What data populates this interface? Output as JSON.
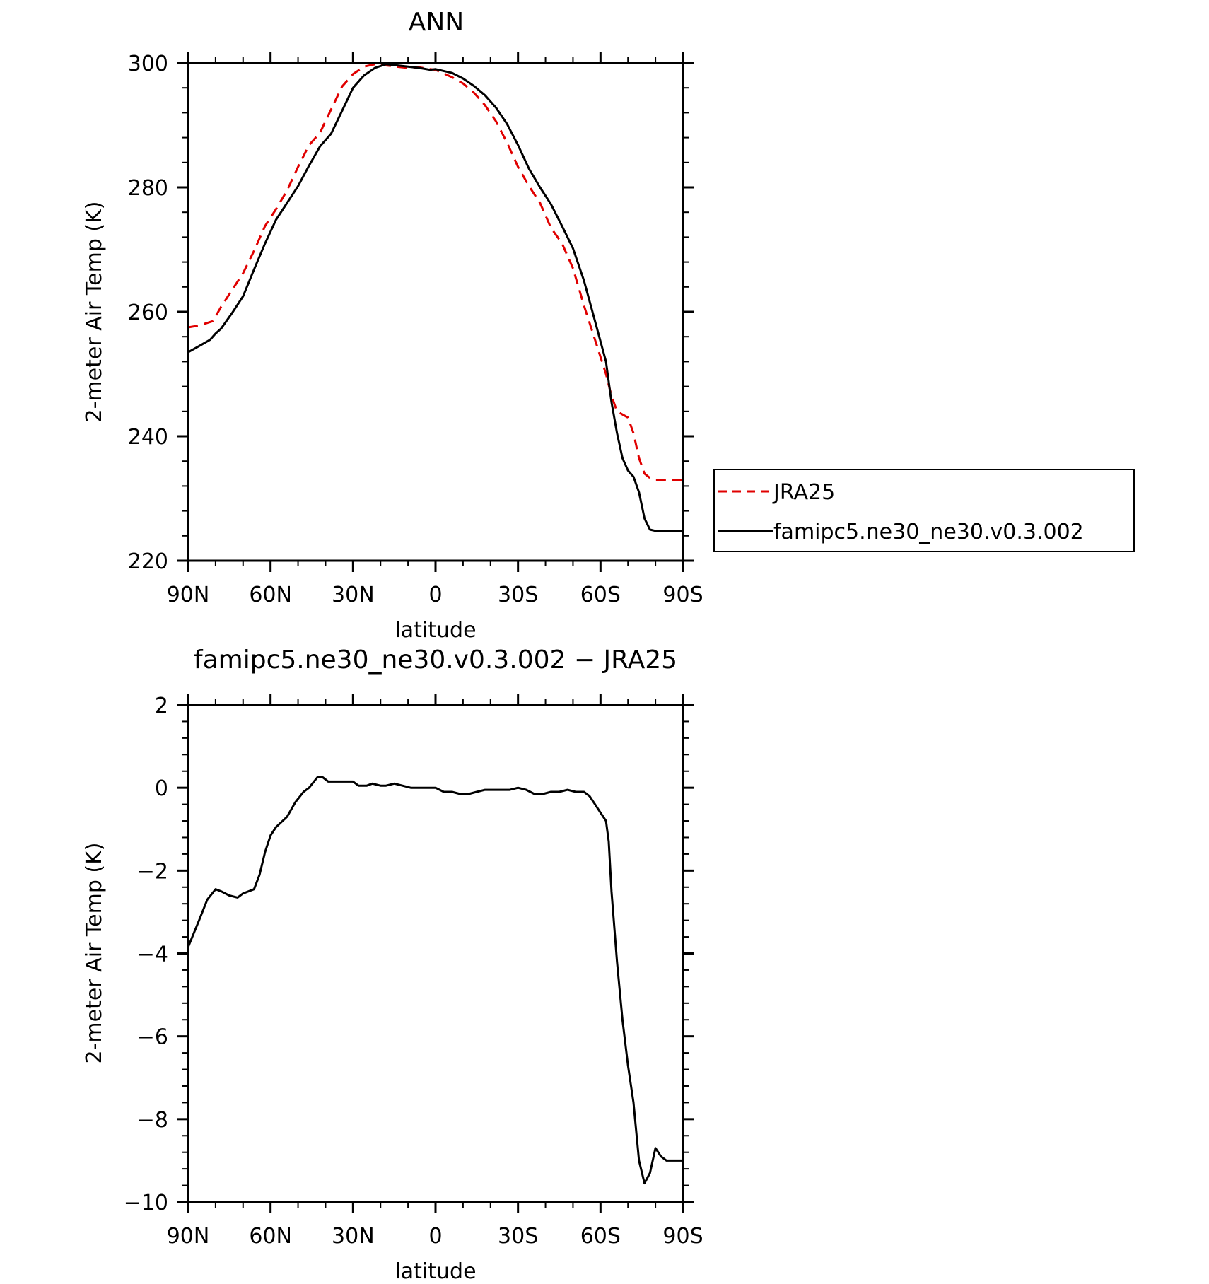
{
  "chart_data": [
    {
      "type": "line",
      "title": "ANN",
      "xlabel": "latitude",
      "ylabel": "2-meter Air Temp (K)",
      "xlim": [
        90,
        -90
      ],
      "ylim": [
        220,
        300
      ],
      "x_ticks": [
        90,
        60,
        30,
        0,
        -30,
        -60,
        -90
      ],
      "x_tick_labels": [
        "90N",
        "60N",
        "30N",
        "0",
        "30S",
        "60S",
        "90S"
      ],
      "y_ticks": [
        220,
        240,
        260,
        280,
        300
      ],
      "y_tick_labels": [
        "220",
        "240",
        "260",
        "280",
        "300"
      ],
      "legend_position": "right",
      "series": [
        {
          "name": "JRA25",
          "color": "#e00000",
          "dash": true,
          "x": [
            90,
            86,
            81,
            78,
            74,
            70,
            66,
            62,
            58,
            54,
            50,
            46,
            42,
            38,
            34,
            30,
            26,
            22,
            18,
            14,
            10,
            6,
            2,
            0,
            -2,
            -6,
            -10,
            -14,
            -18,
            -22,
            -26,
            -30,
            -34,
            -38,
            -42,
            -46,
            -50,
            -54,
            -58,
            -62,
            -64,
            -66,
            -68,
            -70,
            -72,
            -74,
            -76,
            -78,
            -80,
            -82,
            -84,
            -86,
            -88,
            -90
          ],
          "values": [
            257.5,
            257.8,
            258.5,
            260.8,
            263.5,
            266.2,
            269.8,
            273.8,
            276.5,
            279.5,
            283.3,
            286.8,
            288.8,
            292.5,
            296.2,
            298.2,
            299.4,
            299.8,
            299.6,
            299.4,
            299.2,
            299.3,
            299.0,
            298.9,
            298.5,
            297.7,
            296.7,
            295.2,
            293.2,
            290.6,
            287.2,
            283.3,
            280.2,
            277.5,
            273.5,
            271.0,
            267.0,
            261.0,
            255.5,
            250.0,
            246.5,
            244.0,
            243.5,
            243.0,
            240.5,
            236.5,
            234.0,
            233.3,
            233.0,
            233.0,
            233.0,
            233.0,
            233.0,
            233.0
          ],
          "x_note": "",
          "values_note": ""
        },
        {
          "name": "famipc5.ne30_ne30.v0.3.002",
          "color": "#000000",
          "dash": false,
          "x": [
            90,
            86,
            82,
            80,
            78,
            74,
            70,
            66,
            62,
            58,
            54,
            50,
            46,
            42,
            38,
            34,
            30,
            26,
            22,
            18,
            14,
            10,
            6,
            2,
            0,
            -2,
            -6,
            -10,
            -14,
            -18,
            -22,
            -26,
            -30,
            -34,
            -38,
            -42,
            -46,
            -50,
            -54,
            -58,
            -62,
            -64,
            -66,
            -68,
            -70,
            -72,
            -74,
            -76,
            -78,
            -80,
            -82,
            -84,
            -86,
            -88,
            -90
          ],
          "values": [
            253.5,
            254.5,
            255.5,
            256.5,
            257.3,
            259.8,
            262.5,
            266.8,
            271.0,
            274.8,
            277.5,
            280.2,
            283.5,
            286.6,
            288.6,
            292.3,
            296.0,
            298.0,
            299.2,
            299.8,
            299.6,
            299.4,
            299.2,
            298.9,
            299.0,
            298.8,
            298.4,
            297.5,
            296.3,
            294.8,
            292.8,
            290.2,
            286.8,
            283.0,
            280.0,
            277.3,
            273.8,
            270.2,
            265.0,
            258.5,
            252.0,
            245.5,
            240.5,
            236.5,
            234.5,
            233.5,
            231.0,
            226.8,
            225.0,
            224.8,
            224.8,
            224.8,
            224.8,
            224.8,
            224.8
          ]
        }
      ]
    },
    {
      "type": "line",
      "title": "famipc5.ne30_ne30.v0.3.002 − JRA25",
      "xlabel": "latitude",
      "ylabel": "2-meter Air Temp (K)",
      "xlim": [
        90,
        -90
      ],
      "ylim": [
        -10,
        2
      ],
      "x_ticks": [
        90,
        60,
        30,
        0,
        -30,
        -60,
        -90
      ],
      "x_tick_labels": [
        "90N",
        "60N",
        "30N",
        "0",
        "30S",
        "60S",
        "90S"
      ],
      "y_ticks": [
        -10,
        -8,
        -6,
        -4,
        -2,
        0,
        2
      ],
      "y_tick_labels": [
        "−10",
        "−8",
        "−6",
        "−4",
        "−2",
        "0",
        "2"
      ],
      "series": [
        {
          "color": "#000000",
          "dash": false,
          "x": [
            90,
            86,
            83,
            80,
            78,
            75,
            72,
            70,
            66,
            64,
            62,
            60,
            58,
            54,
            51,
            48,
            46,
            43,
            41,
            39,
            36,
            33,
            30,
            28,
            25,
            23,
            20,
            18,
            15,
            12,
            9,
            6,
            3,
            0,
            -3,
            -6,
            -9,
            -12,
            -15,
            -18,
            -21,
            -24,
            -27,
            -30,
            -33,
            -36,
            -39,
            -42,
            -45,
            -48,
            -51,
            -54,
            -56,
            -58,
            -60,
            -62,
            -63,
            -64,
            -66,
            -68,
            -70,
            -72,
            -74,
            -76,
            -78,
            -80,
            -82,
            -84,
            -86,
            -88,
            -90
          ],
          "values": [
            -3.85,
            -3.2,
            -2.7,
            -2.45,
            -2.5,
            -2.6,
            -2.65,
            -2.55,
            -2.45,
            -2.1,
            -1.55,
            -1.15,
            -0.95,
            -0.7,
            -0.35,
            -0.1,
            0.0,
            0.25,
            0.25,
            0.15,
            0.15,
            0.15,
            0.15,
            0.05,
            0.05,
            0.1,
            0.05,
            0.05,
            0.1,
            0.05,
            0.0,
            0.0,
            0.0,
            0.0,
            -0.1,
            -0.1,
            -0.15,
            -0.15,
            -0.1,
            -0.05,
            -0.05,
            -0.05,
            -0.05,
            0.0,
            -0.05,
            -0.15,
            -0.15,
            -0.1,
            -0.1,
            -0.05,
            -0.1,
            -0.1,
            -0.2,
            -0.4,
            -0.6,
            -0.8,
            -1.3,
            -2.5,
            -4.2,
            -5.6,
            -6.7,
            -7.6,
            -9.0,
            -9.55,
            -9.3,
            -8.7,
            -8.9,
            -9.0,
            -9.0,
            -9.0,
            -9.0
          ]
        }
      ]
    }
  ]
}
